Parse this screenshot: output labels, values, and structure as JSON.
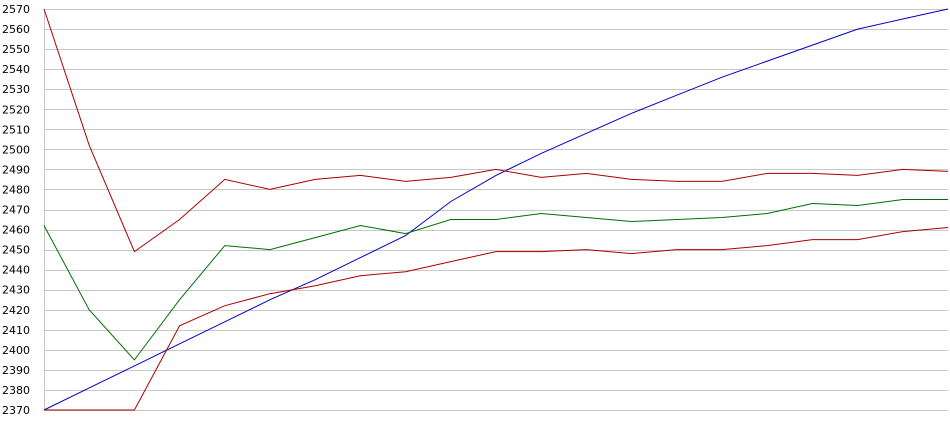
{
  "chart_data": {
    "type": "line",
    "title": "",
    "xlabel": "",
    "ylabel": "",
    "ylim": [
      2370,
      2570
    ],
    "yticks": [
      2370,
      2380,
      2390,
      2400,
      2410,
      2420,
      2430,
      2440,
      2450,
      2460,
      2470,
      2480,
      2490,
      2500,
      2510,
      2520,
      2530,
      2540,
      2550,
      2560,
      2570
    ],
    "ytick_labels": [
      "2370",
      "2380",
      "2390",
      "2400",
      "2410",
      "2420",
      "2430",
      "2440",
      "2450",
      "2460",
      "2470",
      "2480",
      "2490",
      "2500",
      "2510",
      "2520",
      "2530",
      "2540",
      "2550",
      "2560",
      "2570"
    ],
    "grid": "horizontal",
    "legend": "none",
    "x": [
      0,
      5,
      10,
      15,
      20,
      25,
      30,
      35,
      40,
      45,
      50,
      55,
      60,
      65,
      70,
      75,
      80,
      85,
      90,
      95,
      100
    ],
    "series": [
      {
        "color": "#0000c8",
        "values": [
          2370,
          2381,
          2392,
          2403,
          2414,
          2425,
          2435,
          2446,
          2457,
          2474,
          2487,
          2498,
          2508,
          2518,
          2527,
          2536,
          2544,
          2552,
          2560,
          2565,
          2570
        ]
      },
      {
        "color": "#aa0000",
        "values": [
          2570,
          2502,
          2449,
          2465,
          2485,
          2480,
          2485,
          2487,
          2484,
          2486,
          2490,
          2486,
          2488,
          2485,
          2484,
          2484,
          2488,
          2488,
          2487,
          2490,
          2489
        ]
      },
      {
        "color": "#006e00",
        "values": [
          2462,
          2420,
          2395,
          2425,
          2452,
          2450,
          2456,
          2462,
          2458,
          2465,
          2465,
          2468,
          2466,
          2464,
          2465,
          2466,
          2468,
          2473,
          2472,
          2475,
          2475
        ]
      },
      {
        "color": "#aa0000",
        "values": [
          2370,
          2370,
          2370,
          2412,
          2422,
          2428,
          2432,
          2437,
          2439,
          2444,
          2449,
          2449,
          2450,
          2448,
          2450,
          2450,
          2452,
          2455,
          2455,
          2459,
          2461
        ]
      }
    ]
  }
}
